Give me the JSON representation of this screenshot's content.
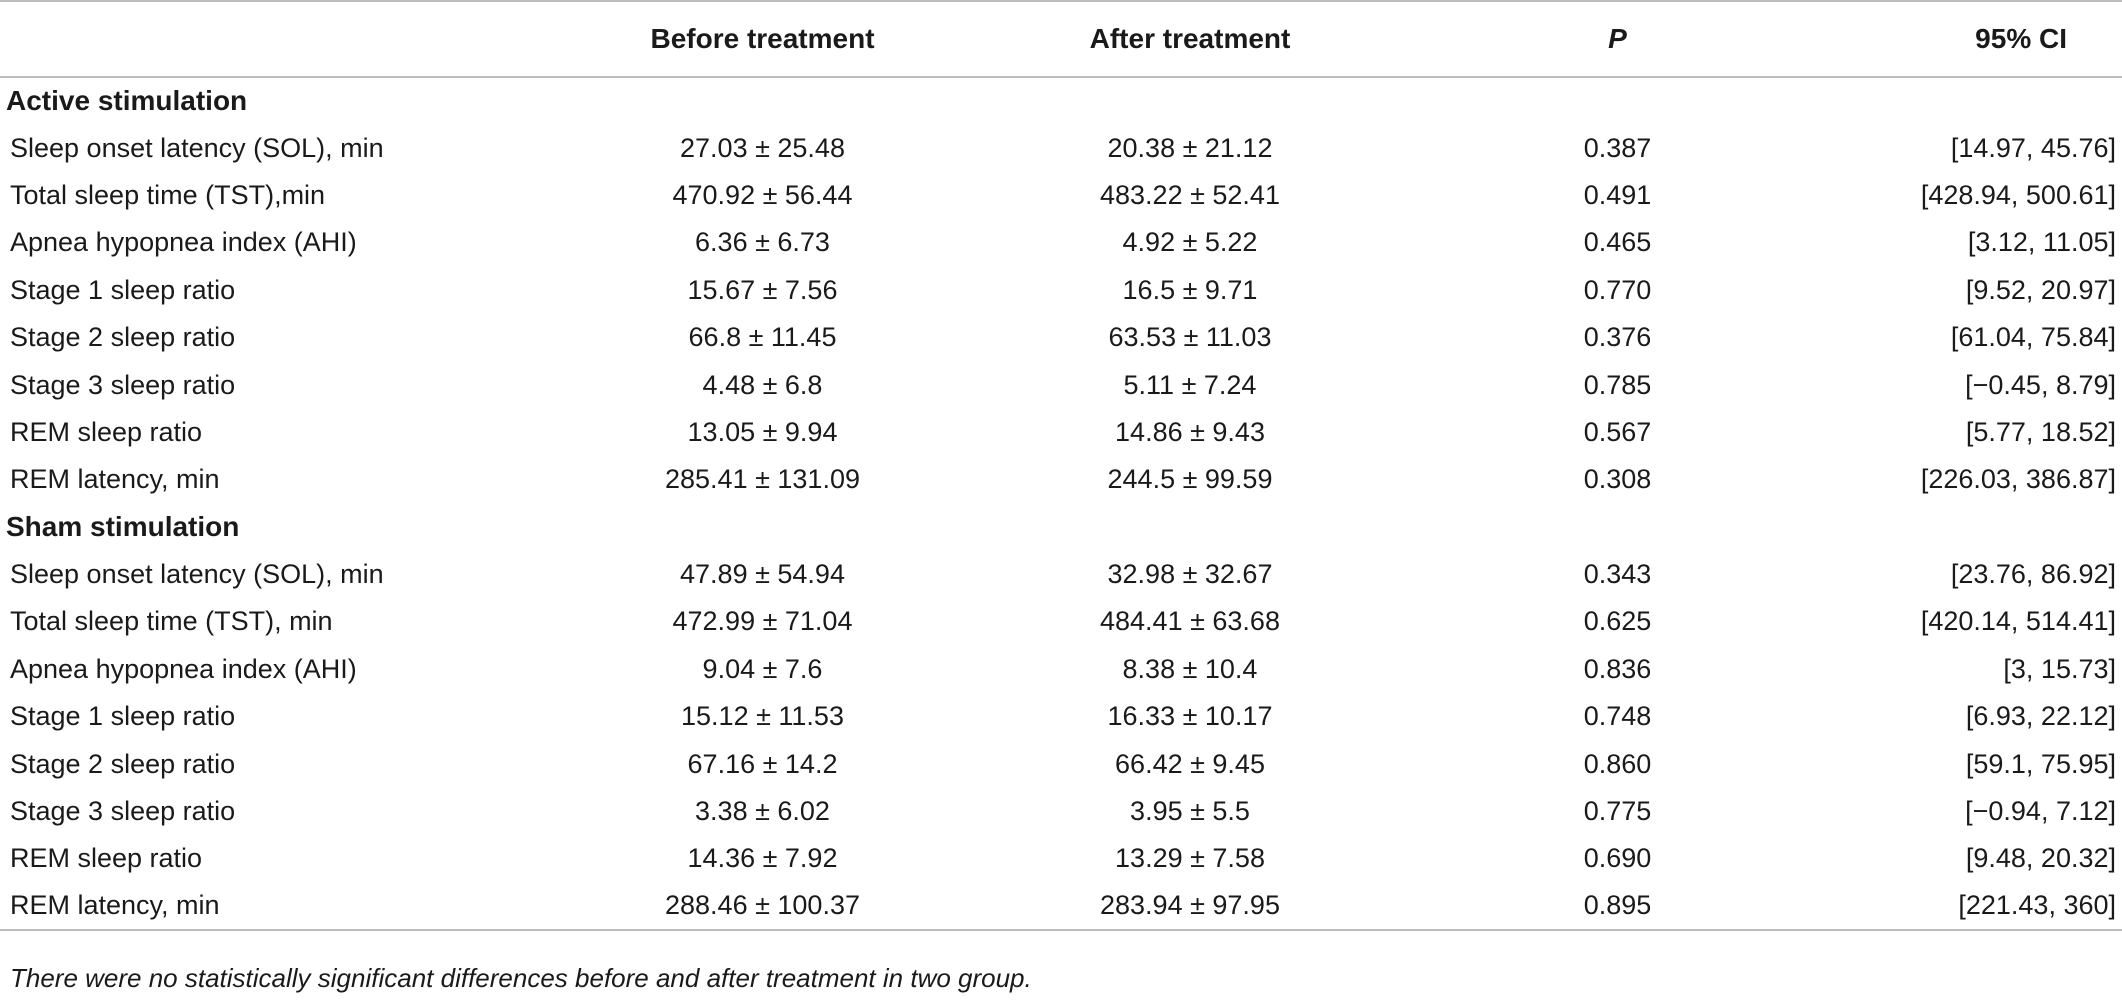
{
  "table": {
    "headers": [
      "",
      "Before treatment",
      "After treatment",
      "P",
      "95% CI"
    ],
    "groups": [
      {
        "name": "Active stimulation",
        "rows": [
          {
            "label": "Sleep onset latency (SOL), min",
            "before": "27.03 ± 25.48",
            "after": "20.38 ± 21.12",
            "p": "0.387",
            "ci": "[14.97, 45.76]"
          },
          {
            "label": "Total sleep time (TST),min",
            "before": "470.92 ± 56.44",
            "after": "483.22 ± 52.41",
            "p": "0.491",
            "ci": "[428.94, 500.61]"
          },
          {
            "label": "Apnea hypopnea index (AHI)",
            "before": "6.36 ± 6.73",
            "after": "4.92 ± 5.22",
            "p": "0.465",
            "ci": "[3.12, 11.05]"
          },
          {
            "label": "Stage 1 sleep ratio",
            "before": "15.67 ± 7.56",
            "after": "16.5 ± 9.71",
            "p": "0.770",
            "ci": "[9.52, 20.97]"
          },
          {
            "label": "Stage 2 sleep ratio",
            "before": "66.8 ± 11.45",
            "after": "63.53 ± 11.03",
            "p": "0.376",
            "ci": "[61.04, 75.84]"
          },
          {
            "label": "Stage 3 sleep ratio",
            "before": "4.48 ± 6.8",
            "after": "5.11 ± 7.24",
            "p": "0.785",
            "ci": "[−0.45, 8.79]"
          },
          {
            "label": "REM sleep ratio",
            "before": "13.05 ± 9.94",
            "after": "14.86 ± 9.43",
            "p": "0.567",
            "ci": "[5.77, 18.52]"
          },
          {
            "label": "REM latency, min",
            "before": "285.41 ± 131.09",
            "after": "244.5 ± 99.59",
            "p": "0.308",
            "ci": "[226.03, 386.87]"
          }
        ]
      },
      {
        "name": "Sham stimulation",
        "rows": [
          {
            "label": "Sleep onset latency (SOL), min",
            "before": "47.89 ± 54.94",
            "after": "32.98 ± 32.67",
            "p": "0.343",
            "ci": "[23.76, 86.92]"
          },
          {
            "label": "Total sleep time (TST), min",
            "before": "472.99 ± 71.04",
            "after": "484.41 ± 63.68",
            "p": "0.625",
            "ci": "[420.14, 514.41]"
          },
          {
            "label": "Apnea hypopnea index (AHI)",
            "before": "9.04 ± 7.6",
            "after": "8.38 ± 10.4",
            "p": "0.836",
            "ci": "[3, 15.73]"
          },
          {
            "label": "Stage 1 sleep ratio",
            "before": "15.12 ± 11.53",
            "after": "16.33 ± 10.17",
            "p": "0.748",
            "ci": "[6.93, 22.12]"
          },
          {
            "label": "Stage 2 sleep ratio",
            "before": "67.16 ± 14.2",
            "after": "66.42 ± 9.45",
            "p": "0.860",
            "ci": "[59.1, 75.95]"
          },
          {
            "label": "Stage 3 sleep ratio",
            "before": "3.38 ± 6.02",
            "after": "3.95 ± 5.5",
            "p": "0.775",
            "ci": "[−0.94, 7.12]"
          },
          {
            "label": "REM sleep ratio",
            "before": "14.36 ± 7.92",
            "after": "13.29 ± 7.58",
            "p": "0.690",
            "ci": "[9.48, 20.32]"
          },
          {
            "label": "REM latency, min",
            "before": "288.46 ± 100.37",
            "after": "283.94 ± 97.95",
            "p": "0.895",
            "ci": "[221.43, 360]"
          }
        ]
      }
    ],
    "footnote": "There were no statistically significant differences before and after treatment in two group."
  }
}
